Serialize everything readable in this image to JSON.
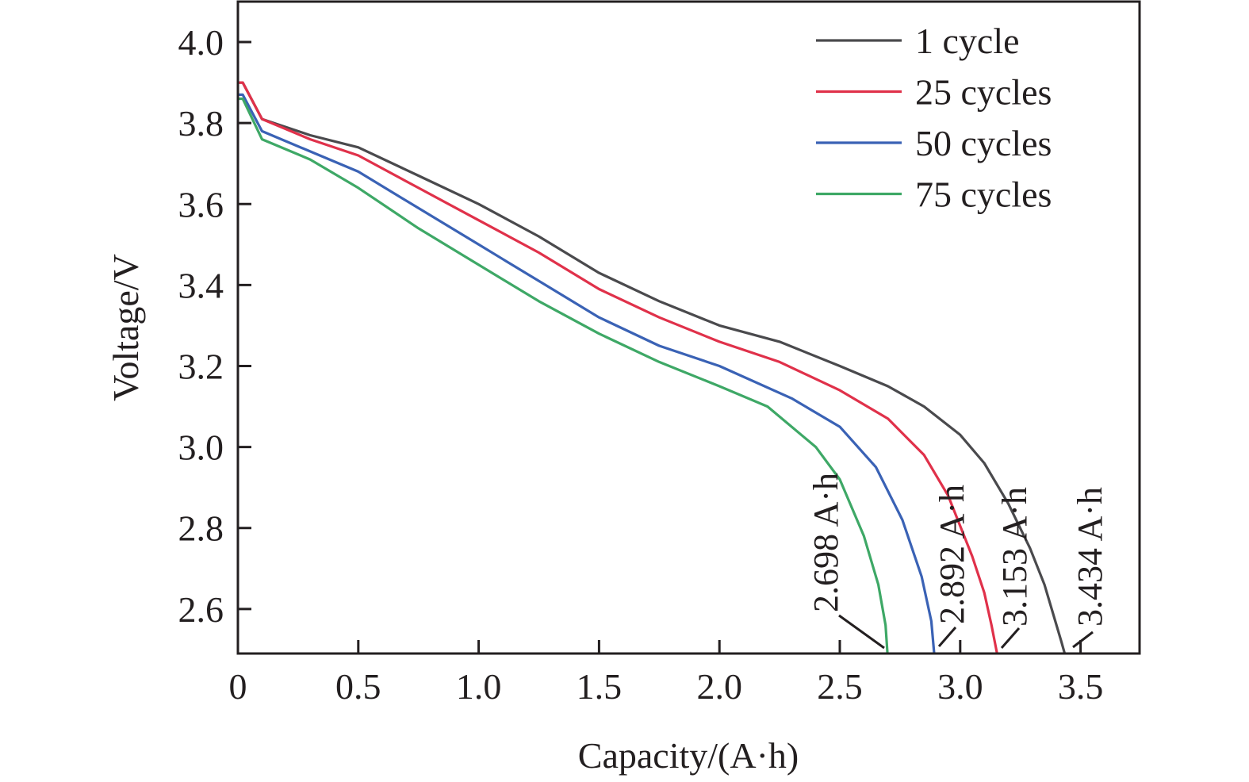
{
  "chart_data": {
    "type": "line",
    "title": "",
    "xlabel": "Capacity/(A·h)",
    "ylabel": "Voltage/V",
    "xlim": [
      0,
      3.745
    ],
    "ylim": [
      2.49,
      4.1
    ],
    "x_ticks": [
      0,
      0.5,
      1.0,
      1.5,
      2.0,
      2.5,
      3.0,
      3.5
    ],
    "x_tick_labels": [
      "0",
      "0.5",
      "1.0",
      "1.5",
      "2.0",
      "2.5",
      "3.0",
      "3.5"
    ],
    "y_ticks": [
      2.6,
      2.8,
      3.0,
      3.2,
      3.4,
      3.6,
      3.8,
      4.0
    ],
    "y_tick_labels": [
      "2.6",
      "2.8",
      "3.0",
      "3.2",
      "3.4",
      "3.6",
      "3.8",
      "4.0"
    ],
    "grid": false,
    "legend_position": "top-right",
    "series": [
      {
        "name": "1 cycle",
        "color": "#4a4a4d",
        "x": [
          0,
          0.02,
          0.1,
          0.3,
          0.5,
          0.75,
          1.0,
          1.25,
          1.5,
          1.75,
          2.0,
          2.25,
          2.5,
          2.7,
          2.85,
          3.0,
          3.1,
          3.2,
          3.29,
          3.35,
          3.39,
          3.42,
          3.434
        ],
        "y": [
          3.9,
          3.9,
          3.81,
          3.77,
          3.74,
          3.67,
          3.6,
          3.52,
          3.43,
          3.36,
          3.3,
          3.26,
          3.2,
          3.15,
          3.1,
          3.03,
          2.96,
          2.86,
          2.75,
          2.66,
          2.58,
          2.52,
          2.49
        ]
      },
      {
        "name": "25 cycles",
        "color": "#e0314a",
        "x": [
          0,
          0.02,
          0.1,
          0.3,
          0.5,
          0.75,
          1.0,
          1.25,
          1.5,
          1.75,
          2.0,
          2.25,
          2.5,
          2.7,
          2.85,
          2.95,
          3.05,
          3.1,
          3.13,
          3.153
        ],
        "y": [
          3.9,
          3.9,
          3.81,
          3.76,
          3.72,
          3.64,
          3.56,
          3.48,
          3.39,
          3.32,
          3.26,
          3.21,
          3.14,
          3.07,
          2.98,
          2.88,
          2.73,
          2.64,
          2.56,
          2.49
        ]
      },
      {
        "name": "50 cycles",
        "color": "#3a62b5",
        "x": [
          0,
          0.02,
          0.1,
          0.3,
          0.5,
          0.75,
          1.0,
          1.25,
          1.5,
          1.75,
          2.0,
          2.3,
          2.5,
          2.65,
          2.76,
          2.84,
          2.88,
          2.892
        ],
        "y": [
          3.87,
          3.87,
          3.78,
          3.73,
          3.68,
          3.59,
          3.5,
          3.41,
          3.32,
          3.25,
          3.2,
          3.12,
          3.05,
          2.95,
          2.82,
          2.68,
          2.57,
          2.49
        ]
      },
      {
        "name": "75 cycles",
        "color": "#3ea866",
        "x": [
          0,
          0.02,
          0.1,
          0.3,
          0.5,
          0.75,
          1.0,
          1.25,
          1.5,
          1.75,
          2.0,
          2.2,
          2.4,
          2.5,
          2.6,
          2.66,
          2.69,
          2.698
        ],
        "y": [
          3.86,
          3.86,
          3.76,
          3.71,
          3.64,
          3.54,
          3.45,
          3.36,
          3.28,
          3.21,
          3.15,
          3.1,
          3.0,
          2.92,
          2.78,
          2.66,
          2.56,
          2.49
        ]
      }
    ],
    "annotations": [
      {
        "text": "2.698 A·h",
        "x": 2.698,
        "series": "75 cycles"
      },
      {
        "text": "2.892 A·h",
        "x": 2.892,
        "series": "50 cycles"
      },
      {
        "text": "3.153 A·h",
        "x": 3.153,
        "series": "25 cycles"
      },
      {
        "text": "3.434 A·h",
        "x": 3.434,
        "series": "1 cycle"
      }
    ]
  }
}
